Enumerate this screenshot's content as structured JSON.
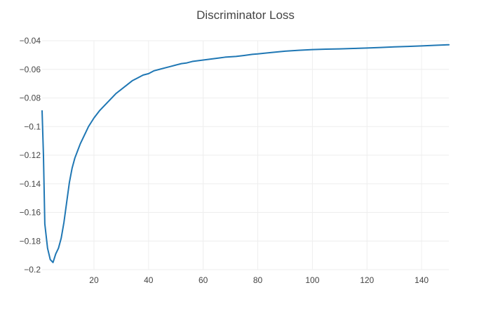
{
  "chart_data": {
    "type": "line",
    "title": "Discriminator Loss",
    "xlabel": "",
    "ylabel": "",
    "xlim": [
      1,
      150
    ],
    "ylim": [
      -0.2,
      -0.04
    ],
    "grid": true,
    "color": "#1f77b4",
    "x_ticks": [
      20,
      40,
      60,
      80,
      100,
      120,
      140
    ],
    "y_ticks": [
      -0.04,
      -0.06,
      -0.08,
      -0.1,
      -0.12,
      -0.14,
      -0.16,
      -0.18,
      -0.2
    ],
    "x_tick_labels": [
      "20",
      "40",
      "60",
      "80",
      "100",
      "120",
      "140"
    ],
    "y_tick_labels": [
      "−0.04",
      "−0.06",
      "−0.08",
      "−0.1",
      "−0.12",
      "−0.14",
      "−0.16",
      "−0.18",
      "−0.2"
    ],
    "series": [
      {
        "x": [
          1,
          1.5,
          2,
          3,
          4,
          5,
          6,
          7,
          8,
          9,
          10,
          11,
          12,
          13,
          14,
          15,
          16,
          17,
          18,
          19,
          20,
          22,
          24,
          26,
          28,
          30,
          32,
          34,
          36,
          38,
          40,
          42,
          44,
          46,
          48,
          50,
          52,
          54,
          56,
          58,
          60,
          62,
          64,
          66,
          68,
          70,
          72,
          75,
          78,
          80,
          85,
          90,
          95,
          100,
          105,
          110,
          115,
          120,
          125,
          130,
          135,
          140,
          145,
          150
        ],
        "y": [
          -0.089,
          -0.12,
          -0.168,
          -0.185,
          -0.193,
          -0.195,
          -0.189,
          -0.185,
          -0.178,
          -0.167,
          -0.153,
          -0.139,
          -0.129,
          -0.122,
          -0.117,
          -0.112,
          -0.108,
          -0.104,
          -0.1,
          -0.097,
          -0.094,
          -0.089,
          -0.085,
          -0.081,
          -0.077,
          -0.074,
          -0.071,
          -0.068,
          -0.066,
          -0.064,
          -0.063,
          -0.061,
          -0.06,
          -0.059,
          -0.058,
          -0.057,
          -0.056,
          -0.0555,
          -0.0545,
          -0.054,
          -0.0535,
          -0.053,
          -0.0525,
          -0.052,
          -0.0515,
          -0.0512,
          -0.051,
          -0.0503,
          -0.0495,
          -0.0492,
          -0.0482,
          -0.0473,
          -0.0467,
          -0.0462,
          -0.0459,
          -0.0457,
          -0.0454,
          -0.0451,
          -0.0447,
          -0.0443,
          -0.044,
          -0.0436,
          -0.0432,
          -0.0428
        ]
      }
    ]
  }
}
